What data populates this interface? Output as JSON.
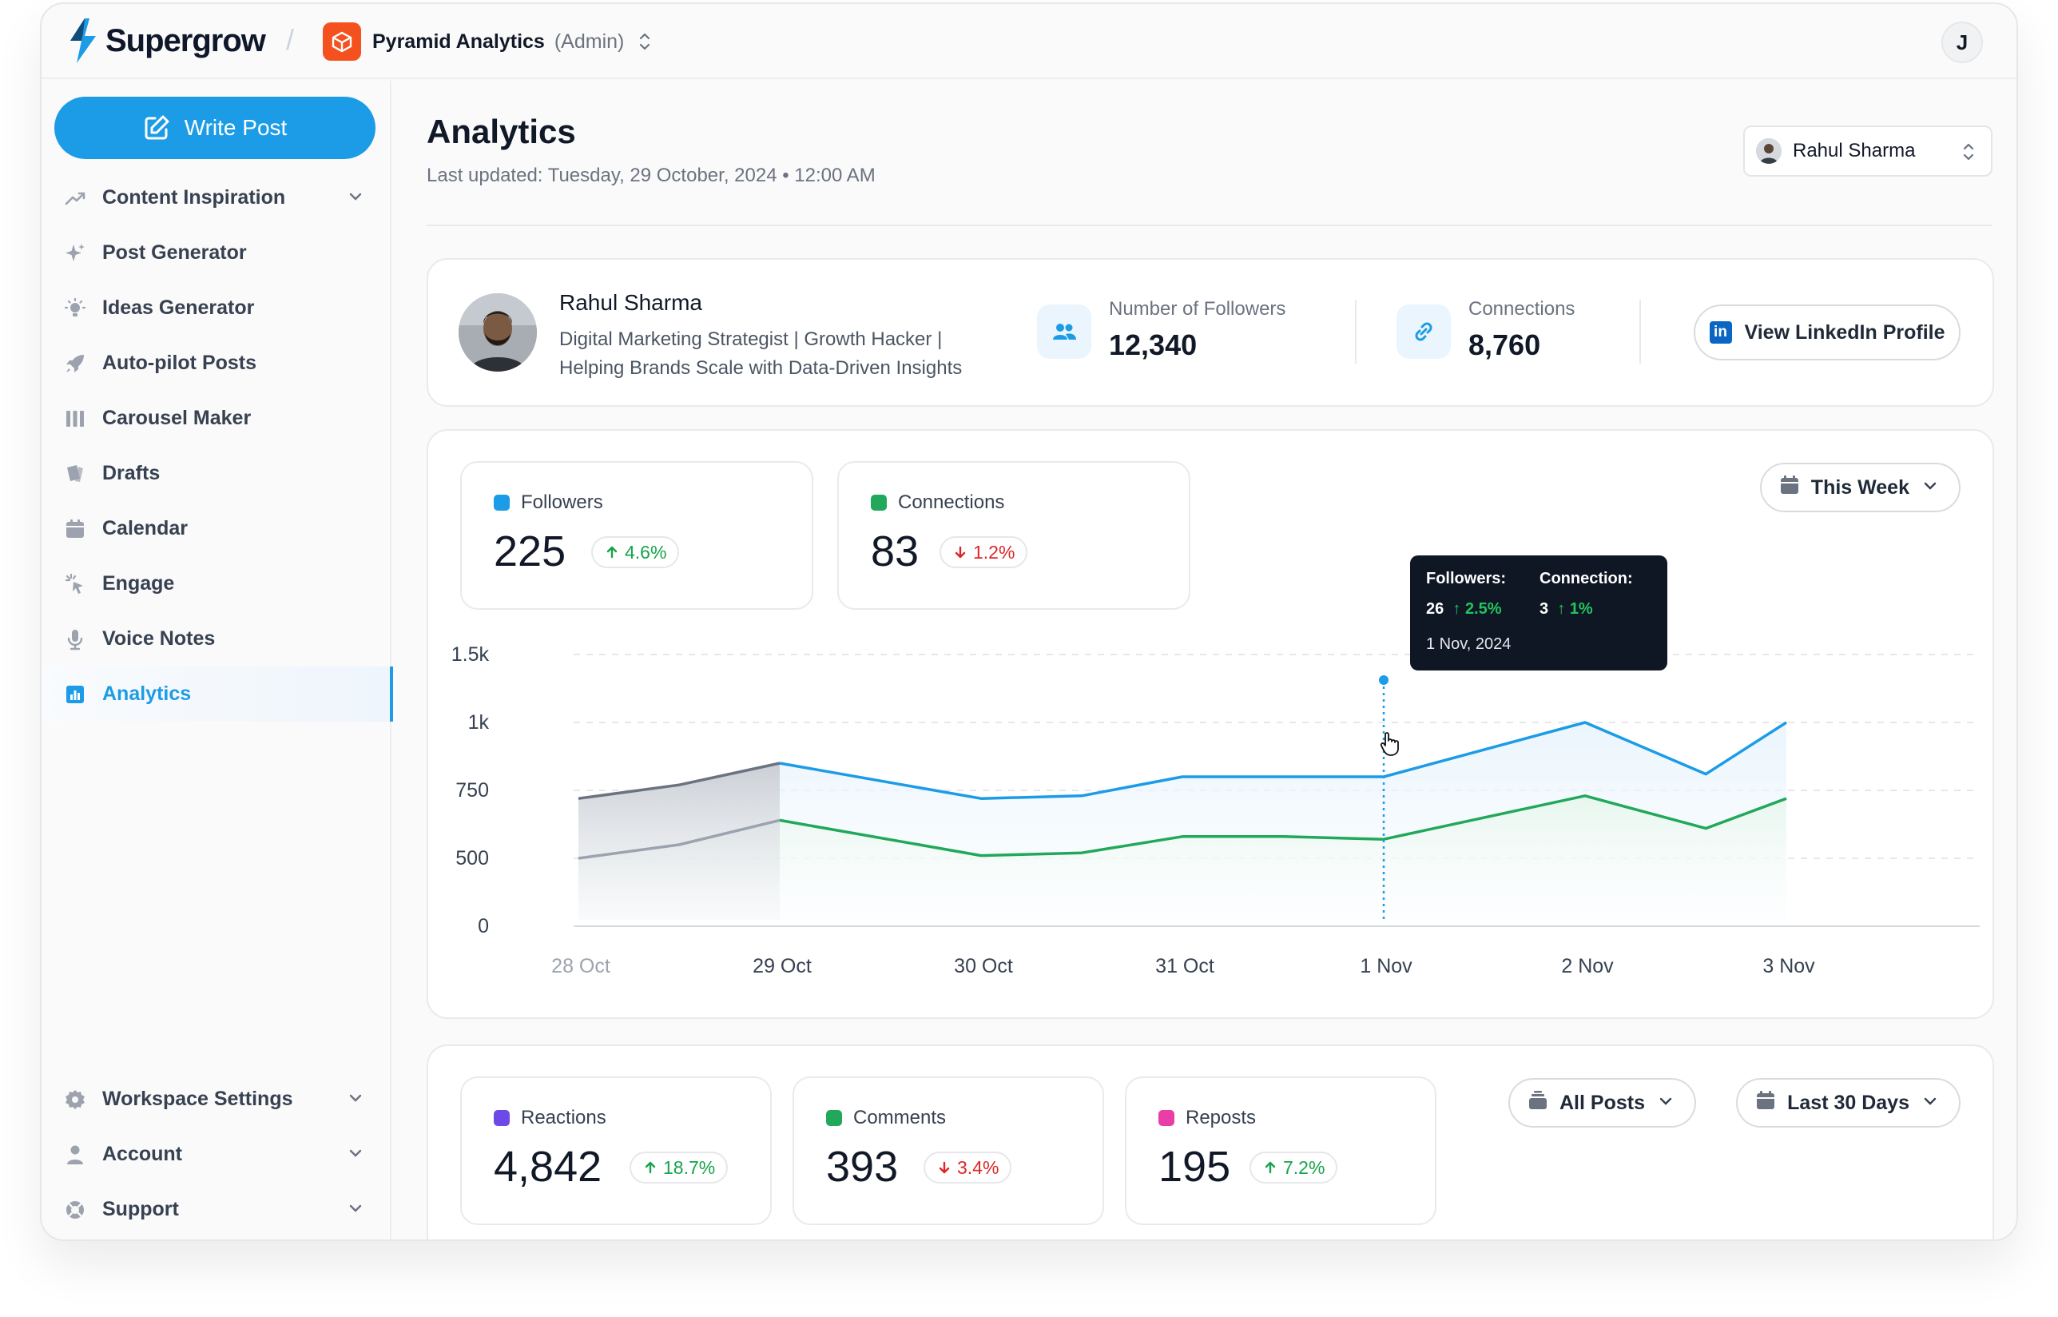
{
  "brand": {
    "name": "Supergrow"
  },
  "workspace": {
    "name": "Pyramid Analytics",
    "role": "(Admin)"
  },
  "user_initial": "J",
  "sidebar": {
    "write_post": "Write Post",
    "items": [
      {
        "label": "Content Inspiration",
        "icon": "trend-up-icon",
        "expandable": true
      },
      {
        "label": "Post Generator",
        "icon": "sparkles-icon"
      },
      {
        "label": "Ideas Generator",
        "icon": "lightbulb-icon"
      },
      {
        "label": "Auto-pilot Posts",
        "icon": "rocket-icon"
      },
      {
        "label": "Carousel Maker",
        "icon": "carousel-icon"
      },
      {
        "label": "Drafts",
        "icon": "drafts-icon"
      },
      {
        "label": "Calendar",
        "icon": "calendar-icon"
      },
      {
        "label": "Engage",
        "icon": "cursor-click-icon"
      },
      {
        "label": "Voice Notes",
        "icon": "microphone-icon"
      },
      {
        "label": "Analytics",
        "icon": "bar-chart-icon",
        "active": true
      }
    ],
    "bottom": [
      {
        "label": "Workspace Settings",
        "icon": "gear-icon"
      },
      {
        "label": "Account",
        "icon": "user-icon"
      },
      {
        "label": "Support",
        "icon": "lifebuoy-icon"
      }
    ]
  },
  "header": {
    "title": "Analytics",
    "subtitle": "Last updated: Tuesday, 29 October, 2024 • 12:00 AM",
    "user_select": "Rahul Sharma"
  },
  "profile": {
    "name": "Rahul Sharma",
    "bio_line1": "Digital Marketing Strategist | Growth Hacker |",
    "bio_line2": "Helping Brands Scale with Data-Driven Insights",
    "followers_label": "Number of Followers",
    "followers_value": "12,340",
    "connections_label": "Connections",
    "connections_value": "8,760",
    "linkedin_button": "View LinkedIn Profile"
  },
  "growth": {
    "followers": {
      "label": "Followers",
      "value": "225",
      "change": "4.6%",
      "direction": "up",
      "color": "#1c9ce6"
    },
    "connections": {
      "label": "Connections",
      "value": "83",
      "change": "1.2%",
      "direction": "down",
      "color": "#22a85a"
    },
    "range": "This Week"
  },
  "tooltip": {
    "followers_label": "Followers:",
    "followers_value": "26",
    "followers_change": "2.5%",
    "connection_label": "Connection:",
    "connection_value": "3",
    "connection_change": "1%",
    "date": "1 Nov, 2024"
  },
  "chart_data": {
    "type": "line",
    "x": [
      "28 Oct",
      "29 Oct",
      "30 Oct",
      "31 Oct",
      "1 Nov",
      "2 Nov",
      "3 Nov"
    ],
    "ytick_labels": [
      "1.5k",
      "1k",
      "750",
      "500",
      "0"
    ],
    "series": [
      {
        "name": "Followers",
        "color": "#1c9ce6",
        "points": [
          [
            0,
            720
          ],
          [
            0.5,
            770
          ],
          [
            1,
            850
          ],
          [
            2,
            720
          ],
          [
            2.5,
            730
          ],
          [
            3,
            800
          ],
          [
            3.5,
            800
          ],
          [
            4,
            800
          ],
          [
            5,
            1000
          ],
          [
            5.6,
            810
          ],
          [
            6,
            1000
          ]
        ]
      },
      {
        "name": "Connections",
        "color": "#22a85a",
        "points": [
          [
            0,
            500
          ],
          [
            0.5,
            550
          ],
          [
            1,
            640
          ],
          [
            2,
            510
          ],
          [
            2.5,
            520
          ],
          [
            3,
            580
          ],
          [
            3.5,
            580
          ],
          [
            4,
            570
          ],
          [
            5,
            730
          ],
          [
            5.6,
            610
          ],
          [
            6,
            720
          ]
        ]
      }
    ],
    "dimmed_until": "29 Oct",
    "highlight_x": "1 Nov",
    "grid": true
  },
  "engagement": {
    "reactions": {
      "label": "Reactions",
      "value": "4,842",
      "change": "18.7%",
      "direction": "up",
      "color": "#6d4ae8"
    },
    "comments": {
      "label": "Comments",
      "value": "393",
      "change": "3.4%",
      "direction": "down",
      "color": "#22a85a"
    },
    "reposts": {
      "label": "Reposts",
      "value": "195",
      "change": "7.2%",
      "direction": "up",
      "color": "#e83ea6"
    },
    "filter": "All Posts",
    "range": "Last 30 Days"
  }
}
